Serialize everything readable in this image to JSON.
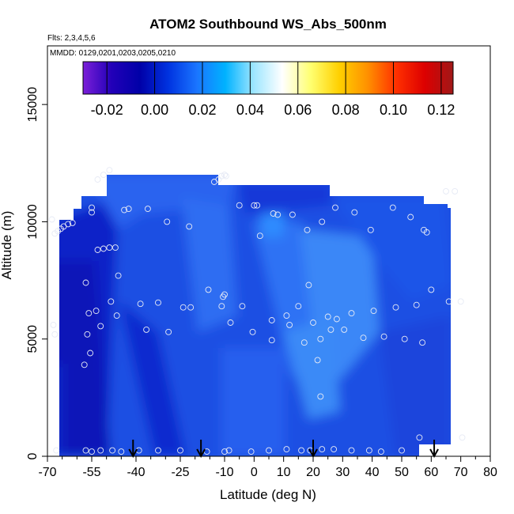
{
  "chart_data": {
    "type": "heatmap",
    "title": "ATOM2 Southbound WS_Abs_500nm",
    "flights_label": "Flts: 2,3,4,5,6",
    "dates_label": "MMDD: 0129,0201,0203,0205,0210",
    "xlabel": "Latitude (deg N)",
    "ylabel": "Altitude (m)",
    "xlim": [
      -70,
      80
    ],
    "ylim": [
      0,
      17500
    ],
    "x_ticks": [
      -70,
      -55,
      -40,
      -25,
      -10,
      0,
      10,
      20,
      30,
      40,
      50,
      60,
      70,
      80
    ],
    "x_tick_labels": [
      "-70",
      "-55",
      "-40",
      "-25",
      "-10",
      "0",
      "10",
      "20",
      "30",
      "40",
      "50",
      "60",
      "70",
      "80"
    ],
    "y_ticks": [
      0,
      5000,
      10000,
      15000
    ],
    "y_tick_labels": [
      "0",
      "5000",
      "10000",
      "15000"
    ],
    "colorbar": {
      "min": -0.03,
      "max": 0.125,
      "ticks": [
        -0.02,
        0.0,
        0.02,
        0.04,
        0.06,
        0.08,
        0.1,
        0.12
      ],
      "tick_labels": [
        "-0.02",
        "0.00",
        "0.02",
        "0.04",
        "0.06",
        "0.08",
        "0.10",
        "0.12"
      ],
      "colors": [
        "#7b1fd8",
        "#2200b8",
        "#0000a8",
        "#0033e0",
        "#1a75ff",
        "#00b2ff",
        "#9ee6ff",
        "#ffffff",
        "#ffff70",
        "#ffd000",
        "#ff9000",
        "#ff3000",
        "#dd0000",
        "#a01818"
      ]
    },
    "descent_markers_lat": [
      -41,
      -18,
      20,
      61
    ],
    "sample_points": [
      [
        -68.5,
        10100
      ],
      [
        -67.5,
        9500
      ],
      [
        -66.5,
        9600
      ],
      [
        -65.5,
        9700
      ],
      [
        -64.5,
        9800
      ],
      [
        -63,
        9900
      ],
      [
        -61.5,
        9950
      ],
      [
        -68,
        5600
      ],
      [
        -67.5,
        5200
      ],
      [
        -67,
        250
      ],
      [
        -55,
        10600
      ],
      [
        -55,
        10400
      ],
      [
        -53,
        11800
      ],
      [
        -51,
        12000
      ],
      [
        -49,
        12200
      ],
      [
        -53,
        8800
      ],
      [
        -51,
        8850
      ],
      [
        -49,
        8900
      ],
      [
        -47,
        8900
      ],
      [
        -46,
        7700
      ],
      [
        -57,
        7400
      ],
      [
        -56,
        6100
      ],
      [
        -53.5,
        6200
      ],
      [
        -48.5,
        6600
      ],
      [
        -46.5,
        6000
      ],
      [
        -38.5,
        6500
      ],
      [
        -32.5,
        6550
      ],
      [
        -36.5,
        5400
      ],
      [
        -29,
        5300
      ],
      [
        -24,
        6350
      ],
      [
        -21.5,
        6350
      ],
      [
        -15.5,
        7100
      ],
      [
        -11,
        6400
      ],
      [
        -10.5,
        6800
      ],
      [
        -10,
        6900
      ],
      [
        -8,
        5700
      ],
      [
        -4,
        6400
      ],
      [
        -56.5,
        5200
      ],
      [
        -52,
        5550
      ],
      [
        -57.5,
        3900
      ],
      [
        -55.5,
        4400
      ],
      [
        -44,
        10500
      ],
      [
        -42.5,
        10550
      ],
      [
        -36,
        10550
      ],
      [
        -29.5,
        10000
      ],
      [
        -22,
        9800
      ],
      [
        -13.5,
        11700
      ],
      [
        -12,
        11800
      ],
      [
        -11,
        11950
      ],
      [
        -10,
        12000
      ],
      [
        -9.5,
        11950
      ],
      [
        -5,
        10700
      ],
      [
        0,
        10700
      ],
      [
        1,
        10700
      ],
      [
        2,
        9400
      ],
      [
        6.5,
        10350
      ],
      [
        8,
        10300
      ],
      [
        13,
        10300
      ],
      [
        18,
        9650
      ],
      [
        23,
        10000
      ],
      [
        27.5,
        10600
      ],
      [
        34,
        10400
      ],
      [
        39.5,
        9650
      ],
      [
        47,
        10600
      ],
      [
        53,
        10200
      ],
      [
        57.5,
        9650
      ],
      [
        58.5,
        9550
      ],
      [
        65,
        11300
      ],
      [
        68,
        11300
      ],
      [
        18.5,
        7300
      ],
      [
        11,
        6000
      ],
      [
        6,
        5800
      ],
      [
        12,
        5600
      ],
      [
        15,
        6400
      ],
      [
        17,
        4850
      ],
      [
        20,
        5700
      ],
      [
        22.5,
        5000
      ],
      [
        25,
        5950
      ],
      [
        26,
        5400
      ],
      [
        28,
        5850
      ],
      [
        30.5,
        5400
      ],
      [
        33,
        6100
      ],
      [
        37,
        5050
      ],
      [
        40.5,
        6200
      ],
      [
        44,
        5100
      ],
      [
        48,
        6350
      ],
      [
        51,
        5000
      ],
      [
        55,
        6450
      ],
      [
        57,
        4850
      ],
      [
        60,
        7100
      ],
      [
        66,
        6600
      ],
      [
        70,
        6600
      ],
      [
        -0.5,
        5300
      ],
      [
        6,
        4950
      ],
      [
        21.5,
        4100
      ],
      [
        22.5,
        2550
      ],
      [
        -57,
        250
      ],
      [
        -55,
        200
      ],
      [
        -52,
        250
      ],
      [
        -48,
        250
      ],
      [
        -45,
        200
      ],
      [
        -39,
        250
      ],
      [
        -32.5,
        250
      ],
      [
        -25,
        250
      ],
      [
        -16,
        200
      ],
      [
        -10,
        200
      ],
      [
        -8.5,
        250
      ],
      [
        -1,
        200
      ],
      [
        5,
        250
      ],
      [
        11,
        300
      ],
      [
        16,
        250
      ],
      [
        19,
        250
      ],
      [
        23,
        300
      ],
      [
        27,
        300
      ],
      [
        33,
        250
      ],
      [
        39,
        250
      ],
      [
        43,
        200
      ],
      [
        50,
        250
      ],
      [
        56,
        800
      ],
      [
        70.5,
        800
      ]
    ]
  }
}
